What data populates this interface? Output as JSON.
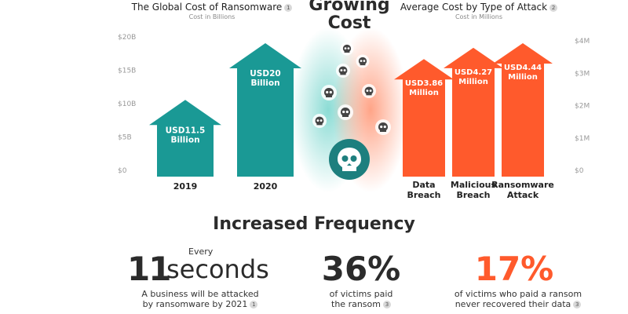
{
  "center": {
    "title_line1": "Growing",
    "title_line2": "Cost"
  },
  "left_panel": {
    "title": "The Global Cost of Ransomware",
    "footnote": "1",
    "subtitle": "Cost in Billions"
  },
  "right_panel": {
    "title": "Average Cost by Type of Attack",
    "footnote": "2",
    "subtitle": "Cost in Millions"
  },
  "frequency": {
    "title": "Increased Frequency",
    "stat1": {
      "prefix": "Every",
      "number": "11",
      "unit": "seconds",
      "desc_line1": "A business will be attacked",
      "desc_line2": "by ransomware by 2021",
      "footnote": "1"
    },
    "stat2": {
      "number": "36%",
      "desc_line1": "of victims paid",
      "desc_line2": "the ransom",
      "footnote": "3"
    },
    "stat3": {
      "number": "17%",
      "desc_line1": "of victims who paid a ransom",
      "desc_line2": "never recovered their data",
      "footnote": "3"
    }
  },
  "colors": {
    "teal": "#1a9995",
    "orange": "#ff5a2c",
    "skull_dark": "#1d7f7e",
    "skull_light": "#ffffff"
  },
  "icons": [
    "skull-icon"
  ],
  "chart_data": [
    {
      "type": "bar",
      "title": "The Global Cost of Ransomware",
      "subtitle": "Cost in Billions",
      "categories": [
        "2019",
        "2020"
      ],
      "values": [
        11.5,
        20
      ],
      "value_labels": [
        "USD11.5 Billion",
        "USD20 Billion"
      ],
      "ylim": [
        0,
        20
      ],
      "yticks": [
        "$0",
        "$5B",
        "$10B",
        "$15B",
        "$20B"
      ],
      "grid": false,
      "bar_shape": "arrow"
    },
    {
      "type": "bar",
      "title": "Average Cost by Type of Attack",
      "subtitle": "Cost in Millions",
      "categories": [
        "Data Breach",
        "Malicious Breach",
        "Ransomware Attack"
      ],
      "values": [
        3.86,
        4.27,
        4.44
      ],
      "value_labels": [
        "USD3.86 Million",
        "USD4.27 Million",
        "USD4.44 Million"
      ],
      "ylim": [
        0,
        4
      ],
      "yticks": [
        "$0",
        "$1M",
        "$2M",
        "$3M",
        "$4M"
      ],
      "grid": false,
      "bar_shape": "arrow"
    }
  ]
}
